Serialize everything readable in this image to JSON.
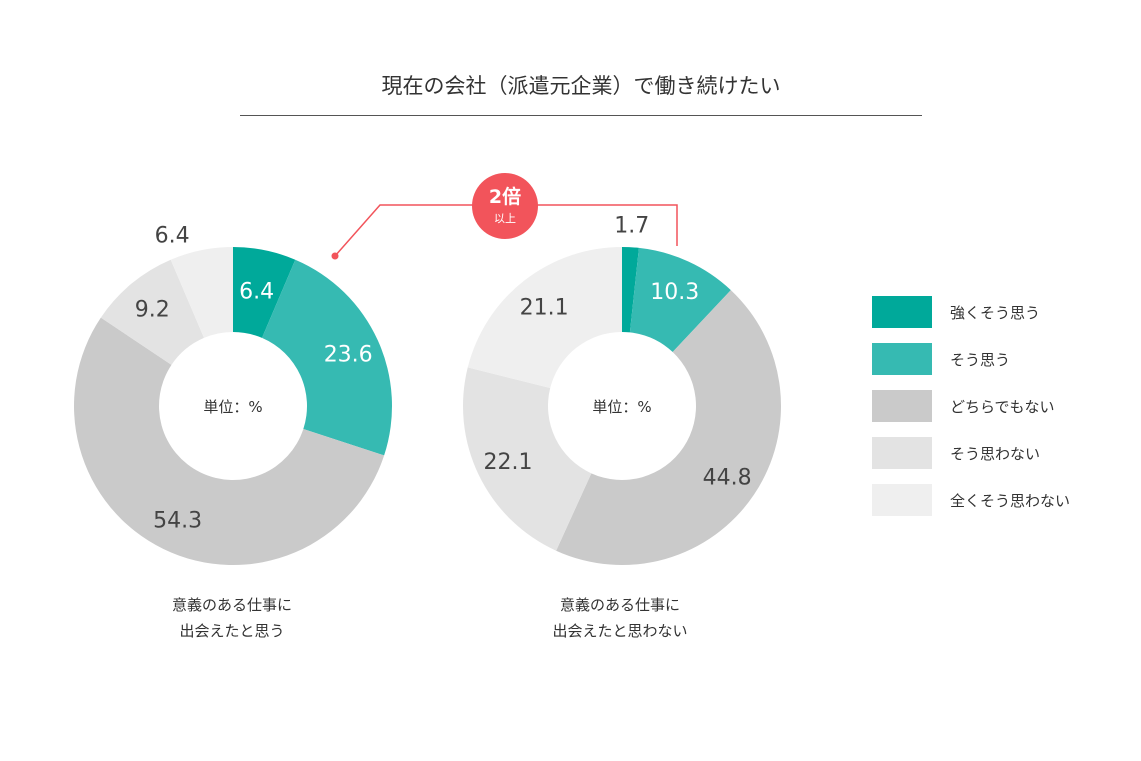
{
  "title": "現在の会社（派遣元企業）で働き続けたい",
  "badge": {
    "main": "2倍",
    "sub": "以上"
  },
  "colors": {
    "strongly_agree": "#00a99a",
    "agree": "#36bab2",
    "neutral": "#cacaca",
    "disagree": "#e3e3e3",
    "strongly_disagree": "#efefef",
    "accent": "#f2545b"
  },
  "legend": [
    {
      "label": "強くそう思う",
      "color": "#00a99a"
    },
    {
      "label": "そう思う",
      "color": "#36bab2"
    },
    {
      "label": "どちらでもない",
      "color": "#cacaca"
    },
    {
      "label": "そう思わない",
      "color": "#e3e3e3"
    },
    {
      "label": "全くそう思わない",
      "color": "#efefef"
    }
  ],
  "chart_data": [
    {
      "type": "pie",
      "variant": "donut",
      "center_label": "単位：%",
      "caption": [
        "意義のある仕事に",
        "出会えたと思う"
      ],
      "categories": [
        "強くそう思う",
        "そう思う",
        "どちらでもない",
        "そう思わない",
        "全くそう思わない"
      ],
      "values": [
        6.4,
        23.6,
        54.3,
        9.2,
        6.4
      ],
      "labels": [
        "6.4",
        "23.6",
        "54.3",
        "9.2",
        "6.4"
      ]
    },
    {
      "type": "pie",
      "variant": "donut",
      "center_label": "単位：%",
      "caption": [
        "意義のある仕事に",
        "出会えたと思わない"
      ],
      "categories": [
        "強くそう思う",
        "そう思う",
        "どちらでもない",
        "そう思わない",
        "全くそう思わない"
      ],
      "values": [
        1.7,
        10.3,
        44.8,
        22.1,
        21.1
      ],
      "labels": [
        "1.7",
        "10.3",
        "44.8",
        "22.1",
        "21.1"
      ]
    }
  ]
}
